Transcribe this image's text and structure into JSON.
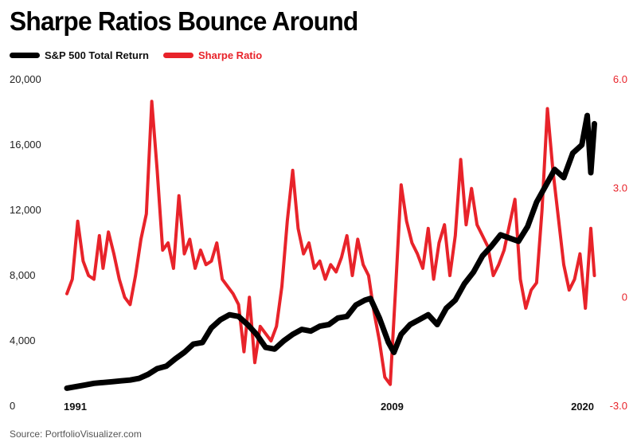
{
  "title": "Sharpe Ratios Bounce Around",
  "source": "Source: PortfolioVisualizer.com",
  "colors": {
    "sp500": "#000000",
    "sharpe": "#e8232a",
    "left_axis_text": "#222222",
    "right_axis_text": "#e8232a"
  },
  "chart_data": {
    "type": "line",
    "title": "Sharpe Ratios Bounce Around",
    "legend_position": "top-left",
    "grid": false,
    "x_ticks": [
      "1991",
      "2009",
      "2020"
    ],
    "xlim": [
      1991,
      2020
    ],
    "left_axis": {
      "ylim": [
        0,
        20000
      ],
      "ticks": [
        "0",
        "4,000",
        "8,000",
        "12,000",
        "16,000",
        "20,000"
      ]
    },
    "right_axis": {
      "ylim": [
        -3.0,
        6.0
      ],
      "ticks": [
        "-3.0",
        "0",
        "3.0",
        "6.0"
      ]
    },
    "series": [
      {
        "name": "S&P 500 Total Return",
        "axis": "left",
        "x": [
          1991.0,
          1991.5,
          1992.0,
          1992.5,
          1993.0,
          1993.5,
          1994.0,
          1994.5,
          1995.0,
          1995.5,
          1996.0,
          1996.5,
          1997.0,
          1997.5,
          1998.0,
          1998.5,
          1999.0,
          1999.5,
          2000.0,
          2000.5,
          2001.0,
          2001.5,
          2002.0,
          2002.5,
          2003.0,
          2003.5,
          2004.0,
          2004.5,
          2005.0,
          2005.5,
          2006.0,
          2006.5,
          2007.0,
          2007.5,
          2007.8,
          2008.3,
          2008.8,
          2009.1,
          2009.5,
          2010.0,
          2010.5,
          2011.0,
          2011.5,
          2012.0,
          2012.5,
          2013.0,
          2013.5,
          2014.0,
          2014.5,
          2015.0,
          2015.5,
          2016.0,
          2016.5,
          2017.0,
          2017.5,
          2018.0,
          2018.5,
          2019.0,
          2019.5,
          2019.8,
          2020.0,
          2020.2
        ],
        "values": [
          1100,
          1200,
          1300,
          1400,
          1450,
          1500,
          1550,
          1600,
          1700,
          1950,
          2300,
          2450,
          2900,
          3300,
          3800,
          3900,
          4800,
          5300,
          5600,
          5500,
          5000,
          4400,
          3600,
          3500,
          4000,
          4400,
          4700,
          4600,
          4900,
          5000,
          5400,
          5500,
          6200,
          6500,
          6600,
          5400,
          3900,
          3300,
          4400,
          5000,
          5300,
          5600,
          5000,
          6000,
          6500,
          7500,
          8200,
          9200,
          9800,
          10500,
          10300,
          10100,
          11000,
          12500,
          13500,
          14500,
          14000,
          15500,
          16000,
          17800,
          14300,
          17300
        ]
      },
      {
        "name": "Sharpe Ratio",
        "axis": "right",
        "x": [
          1991.0,
          1991.3,
          1991.6,
          1991.9,
          1992.2,
          1992.5,
          1992.8,
          1993.0,
          1993.3,
          1993.6,
          1993.9,
          1994.2,
          1994.5,
          1994.8,
          1995.1,
          1995.4,
          1995.7,
          1996.0,
          1996.3,
          1996.6,
          1996.9,
          1997.2,
          1997.5,
          1997.8,
          1998.1,
          1998.4,
          1998.7,
          1999.0,
          1999.3,
          1999.6,
          1999.9,
          2000.2,
          2000.5,
          2000.8,
          2001.1,
          2001.4,
          2001.7,
          2002.0,
          2002.3,
          2002.6,
          2002.9,
          2003.2,
          2003.5,
          2003.8,
          2004.1,
          2004.4,
          2004.7,
          2005.0,
          2005.3,
          2005.6,
          2005.9,
          2006.2,
          2006.5,
          2006.8,
          2007.1,
          2007.4,
          2007.7,
          2008.0,
          2008.3,
          2008.6,
          2008.9,
          2009.2,
          2009.5,
          2009.8,
          2010.1,
          2010.4,
          2010.7,
          2011.0,
          2011.3,
          2011.6,
          2011.9,
          2012.2,
          2012.5,
          2012.8,
          2013.1,
          2013.4,
          2013.7,
          2014.0,
          2014.3,
          2014.6,
          2014.9,
          2015.2,
          2015.5,
          2015.8,
          2016.1,
          2016.4,
          2016.7,
          2017.0,
          2017.3,
          2017.6,
          2017.9,
          2018.2,
          2018.5,
          2018.8,
          2019.1,
          2019.4,
          2019.7,
          2020.0,
          2020.2
        ],
        "values": [
          0.1,
          0.5,
          2.1,
          1.0,
          0.6,
          0.5,
          1.7,
          0.8,
          1.8,
          1.2,
          0.5,
          0.0,
          -0.2,
          0.6,
          1.6,
          2.3,
          5.4,
          3.5,
          1.3,
          1.5,
          0.8,
          2.8,
          1.2,
          1.6,
          0.8,
          1.3,
          0.9,
          1.0,
          1.5,
          0.5,
          0.3,
          0.1,
          -0.2,
          -1.5,
          0.0,
          -1.8,
          -0.8,
          -1.0,
          -1.2,
          -0.8,
          0.3,
          2.1,
          3.5,
          1.9,
          1.2,
          1.5,
          0.8,
          1.0,
          0.5,
          0.9,
          0.7,
          1.1,
          1.7,
          0.6,
          1.6,
          0.9,
          0.6,
          -0.4,
          -1.2,
          -2.2,
          -2.4,
          0.3,
          3.1,
          2.1,
          1.5,
          1.2,
          0.8,
          1.9,
          0.5,
          1.5,
          2.0,
          0.6,
          1.7,
          3.8,
          2.0,
          3.0,
          2.0,
          1.7,
          1.4,
          0.6,
          0.9,
          1.3,
          2.0,
          2.7,
          0.5,
          -0.3,
          0.2,
          0.4,
          2.4,
          5.2,
          3.5,
          2.2,
          0.9,
          0.2,
          0.5,
          1.2,
          -0.3,
          1.9,
          0.6
        ]
      }
    ]
  }
}
